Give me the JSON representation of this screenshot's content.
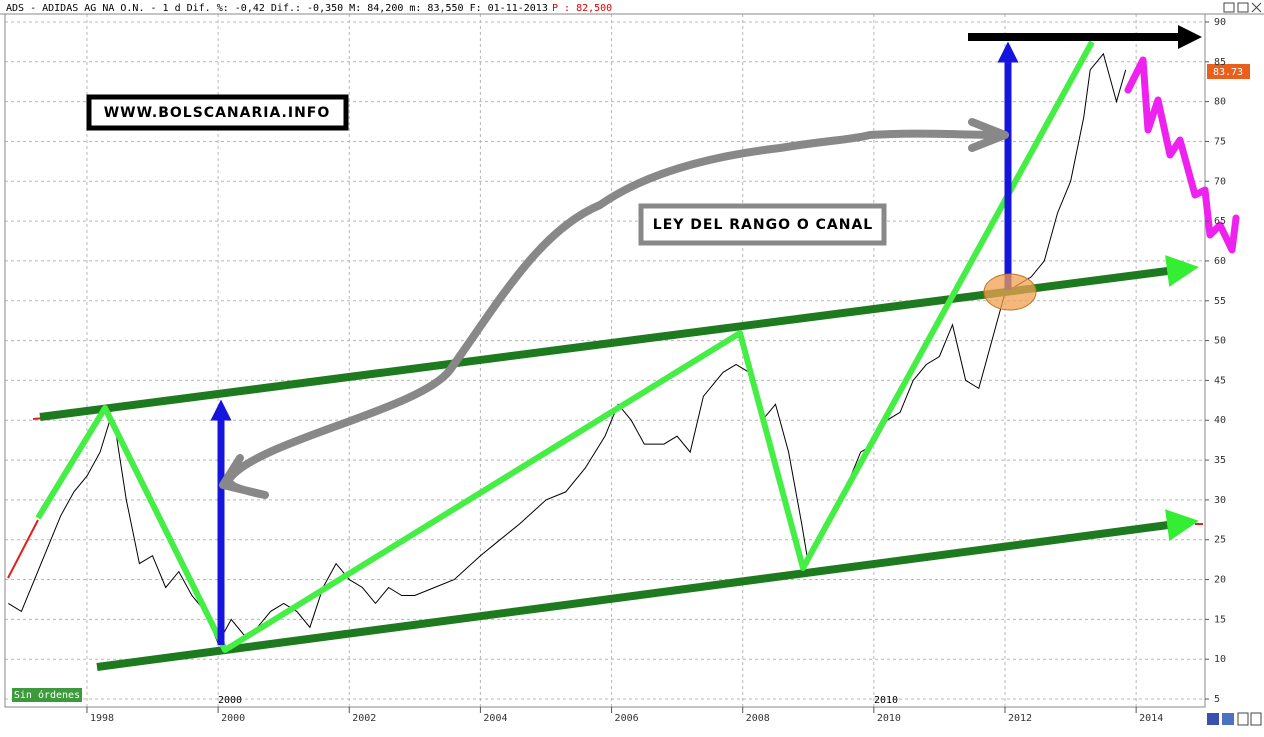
{
  "chart_data": {
    "type": "line",
    "title": "ADS - ADIDAS AG NA O.N. -  1 d Dif. %: -0,42 Dif.: -0,350 M: 84,200 m: 83,550 F: 01-11-2013",
    "price_label": "P : 82,500",
    "last_value_label": "83.73",
    "annotations": [
      "WWW.BOLSCANARIA.INFO",
      "LEY DEL RANGO O CANAL",
      "Sin órdenes",
      "2000",
      "2010"
    ],
    "grid": true,
    "xlim": [
      1996.75,
      2015.05
    ],
    "xticks": [
      1998,
      2000,
      2002,
      2004,
      2006,
      2008,
      2010,
      2012,
      2014
    ],
    "ylim": [
      4,
      91
    ],
    "yticks": [
      5,
      10,
      15,
      20,
      25,
      30,
      35,
      40,
      45,
      50,
      55,
      60,
      65,
      70,
      75,
      80,
      85,
      90
    ],
    "series": [
      {
        "color": "#000000",
        "x": [
          1996.8,
          1997.0,
          1997.2,
          1997.4,
          1997.6,
          1997.8,
          1998.0,
          1998.2,
          1998.35,
          1998.45,
          1998.6,
          1998.7,
          1998.8,
          1999.0,
          1999.2,
          1999.4,
          1999.6,
          1999.8,
          2000.0,
          2000.2,
          2000.4,
          2000.6,
          2000.8,
          2001.0,
          2001.2,
          2001.4,
          2001.6,
          2001.8,
          2002.0,
          2002.2,
          2002.4,
          2002.6,
          2002.8,
          2003.0,
          2003.3,
          2003.6,
          2004.0,
          2004.3,
          2004.6,
          2005.0,
          2005.3,
          2005.6,
          2005.9,
          2006.1,
          2006.3,
          2006.5,
          2006.8,
          2007.0,
          2007.2,
          2007.4,
          2007.7,
          2007.9,
          2008.1,
          2008.3,
          2008.5,
          2008.7,
          2008.9,
          2009.0,
          2009.2,
          2009.4,
          2009.6,
          2009.8,
          2010.0,
          2010.2,
          2010.4,
          2010.6,
          2010.8,
          2011.0,
          2011.2,
          2011.4,
          2011.6,
          2011.8,
          2012.0,
          2012.2,
          2012.4,
          2012.6,
          2012.8,
          2013.0,
          2013.2,
          2013.3,
          2013.5,
          2013.7,
          2013.84
        ],
        "values": [
          17,
          16,
          20,
          24,
          28,
          31,
          33,
          36,
          40,
          38,
          30,
          26,
          22,
          23,
          19,
          21,
          18,
          16,
          12,
          15,
          13,
          14,
          16,
          17,
          16,
          14,
          19,
          22,
          20,
          19,
          17,
          19,
          18,
          18,
          19,
          20,
          23,
          25,
          27,
          30,
          31,
          34,
          38,
          42,
          40,
          37,
          37,
          38,
          36,
          43,
          46,
          47,
          46,
          40,
          42,
          36,
          27,
          22,
          26,
          28,
          32,
          36,
          37,
          40,
          41,
          45,
          47,
          48,
          52,
          45,
          44,
          50,
          56,
          57,
          58,
          60,
          66,
          70,
          78,
          84,
          86,
          80,
          84
        ]
      }
    ]
  }
}
